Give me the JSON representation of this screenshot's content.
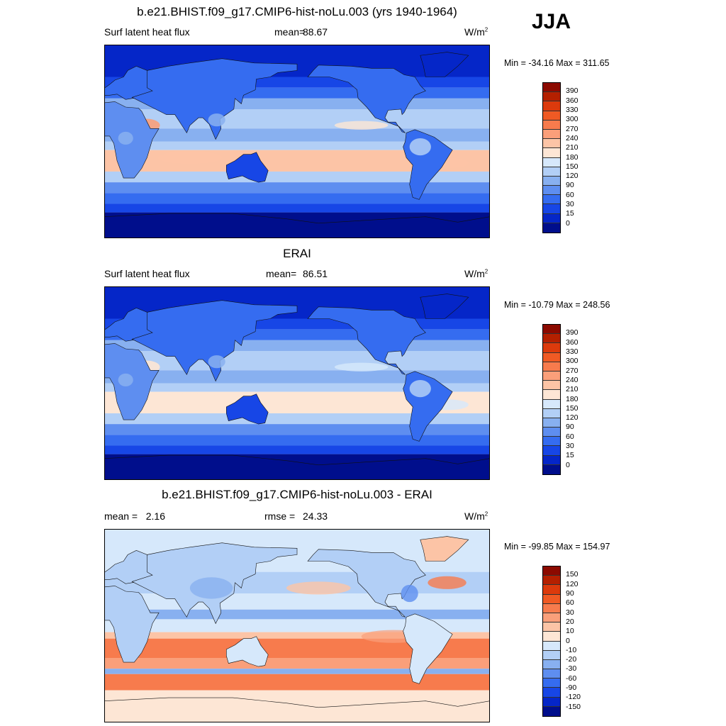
{
  "season": "JJA",
  "panels": [
    {
      "title": "b.e21.BHIST.f09_g17.CMIP6-hist-noLu.003 (yrs 1940-1964)",
      "left_label": "Surf latent heat flux",
      "mean_label": "mean=",
      "mean_value": "88.67",
      "unit": "W/m",
      "unit_sup": "2",
      "minmax": "Min = -34.16 Max = 311.65",
      "scale": "abs",
      "kind": "model"
    },
    {
      "title": "ERAI",
      "left_label": "Surf latent heat flux",
      "mean_label": "mean=",
      "mean_value": "86.51",
      "unit": "W/m",
      "unit_sup": "2",
      "minmax": "Min = -10.79 Max = 248.56",
      "scale": "abs",
      "kind": "obs"
    },
    {
      "title": "b.e21.BHIST.f09_g17.CMIP6-hist-noLu.003 - ERAI",
      "left_label": "mean =   2.16",
      "mean_label": "rmse =",
      "mean_value": "24.33",
      "unit": "W/m",
      "unit_sup": "2",
      "minmax": "Min = -99.85 Max = 154.97",
      "scale": "diff",
      "kind": "diff"
    }
  ],
  "colorbars": {
    "abs": {
      "labels": [
        "390",
        "360",
        "330",
        "300",
        "270",
        "240",
        "210",
        "180",
        "150",
        "120",
        "90",
        "60",
        "30",
        "15",
        "0"
      ],
      "colors": [
        "#8c0a00",
        "#b42000",
        "#dc3a0c",
        "#f05a24",
        "#f77b4d",
        "#fa9f7a",
        "#fcc4a6",
        "#fde6d5",
        "#d6e8fb",
        "#b2cff6",
        "#88b0f0",
        "#5e8ef0",
        "#356cf0",
        "#1746e6",
        "#0526c8",
        "#000e8c"
      ]
    },
    "diff": {
      "labels": [
        "150",
        "120",
        "90",
        "60",
        "30",
        "20",
        "10",
        "0",
        "-10",
        "-20",
        "-30",
        "-60",
        "-90",
        "-120",
        "-150"
      ],
      "colors": [
        "#8c0a00",
        "#b42000",
        "#dc3a0c",
        "#f05a24",
        "#f77b4d",
        "#fa9f7a",
        "#fcc4a6",
        "#fde6d5",
        "#d6e8fb",
        "#b2cff6",
        "#88b0f0",
        "#5e8ef0",
        "#356cf0",
        "#1746e6",
        "#0526c8",
        "#000e8c"
      ]
    }
  },
  "chart_data": [
    {
      "type": "heatmap",
      "title": "b.e21.BHIST.f09_g17.CMIP6-hist-noLu.003 (yrs 1940-1964)",
      "variable": "Surf latent heat flux",
      "units": "W/m2",
      "mean": 88.67,
      "min": -34.16,
      "max": 311.65,
      "contour_levels": [
        0,
        15,
        30,
        60,
        90,
        120,
        150,
        180,
        210,
        240,
        270,
        300,
        330,
        360,
        390
      ]
    },
    {
      "type": "heatmap",
      "title": "ERAI",
      "variable": "Surf latent heat flux",
      "units": "W/m2",
      "mean": 86.51,
      "min": -10.79,
      "max": 248.56,
      "contour_levels": [
        0,
        15,
        30,
        60,
        90,
        120,
        150,
        180,
        210,
        240,
        270,
        300,
        330,
        360,
        390
      ]
    },
    {
      "type": "heatmap",
      "title": "b.e21.BHIST.f09_g17.CMIP6-hist-noLu.003 - ERAI",
      "units": "W/m2",
      "mean": 2.16,
      "rmse": 24.33,
      "min": -99.85,
      "max": 154.97,
      "contour_levels": [
        -150,
        -120,
        -90,
        -60,
        -30,
        -20,
        -10,
        0,
        10,
        20,
        30,
        60,
        90,
        120,
        150
      ]
    }
  ]
}
